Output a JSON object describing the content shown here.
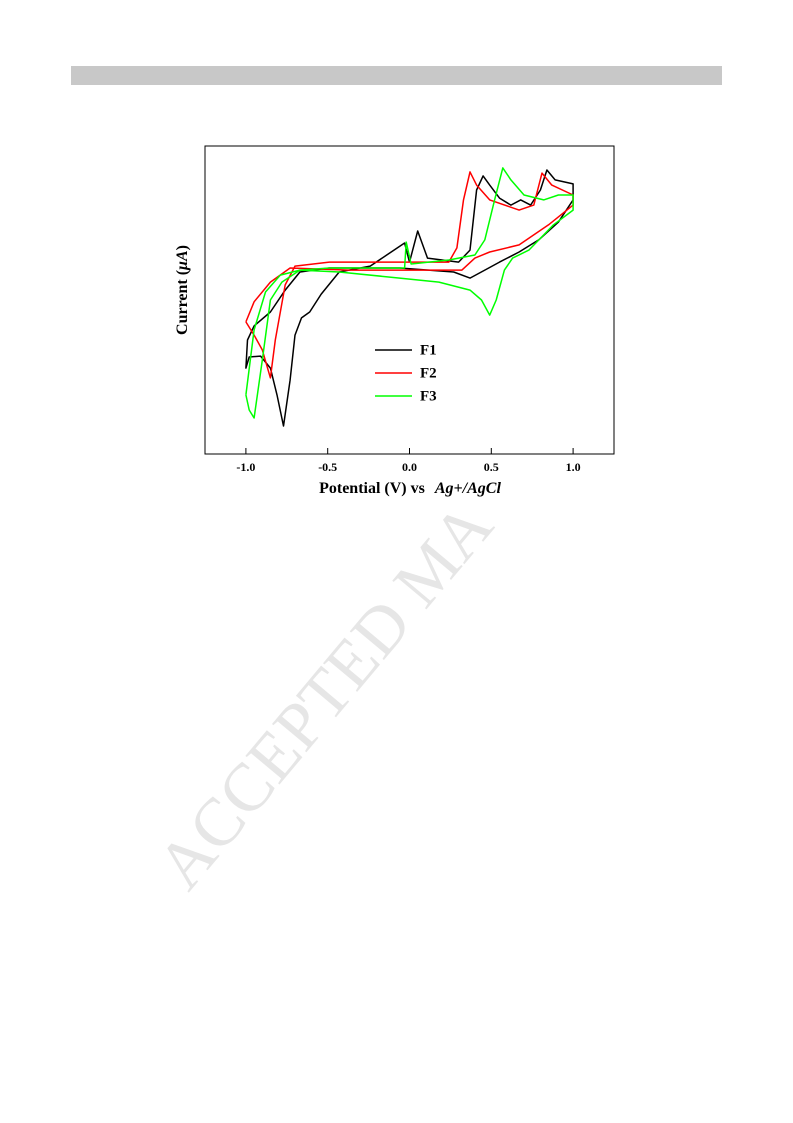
{
  "watermark": "ACCEPTED MA",
  "chart_data": {
    "type": "line",
    "xlabel": [
      "Potential (V) vs",
      "Ag+/AgCl"
    ],
    "ylabel": [
      "Current (",
      "μA",
      ")"
    ],
    "xlim": [
      -1.25,
      1.25
    ],
    "ylim": [
      0,
      100
    ],
    "xticks": [
      {
        "value": -1,
        "label": "-1.0"
      },
      -0.5,
      {
        "value": 0,
        "label": "0.0"
      },
      0.5,
      {
        "value": 1,
        "label": "1.0"
      }
    ],
    "legend": "lower center",
    "series": [
      {
        "name": "F1",
        "color": "#000000",
        "x": [
          0.0,
          0.05,
          0.11,
          0.3,
          0.37,
          0.41,
          0.45,
          0.49,
          0.55,
          0.62,
          0.68,
          0.74,
          0.8,
          0.84,
          0.89,
          1.0,
          1.0,
          0.91,
          0.79,
          0.67,
          0.55,
          0.46,
          0.37,
          0.27,
          -0.06,
          -0.49,
          -0.67,
          -0.76,
          -0.85,
          -0.95,
          -0.99,
          -1.0,
          -0.98,
          -0.91,
          -0.85,
          -0.81,
          -0.77,
          -0.73,
          -0.7,
          -0.66,
          -0.61,
          -0.54,
          -0.43,
          -0.24,
          -0.03,
          0.0
        ],
        "values": [
          62.3,
          72.4,
          63.6,
          62.3,
          66.2,
          85.7,
          90.3,
          87.3,
          83.1,
          80.8,
          82.5,
          80.8,
          85.7,
          92.2,
          89.0,
          87.7,
          82.5,
          75.3,
          69.5,
          65.6,
          62.3,
          59.7,
          57.1,
          59.1,
          60.4,
          60.4,
          59.1,
          53.2,
          46.1,
          41.6,
          37.0,
          27.9,
          31.5,
          31.8,
          27.9,
          19.2,
          9.1,
          24.0,
          38.6,
          44.2,
          46.1,
          51.9,
          59.1,
          61.0,
          68.5,
          62.3
        ]
      },
      {
        "name": "F2",
        "color": "#ff0000",
        "x": [
          -1.0,
          -0.95,
          -0.9,
          -0.85,
          -0.82,
          -0.76,
          -0.7,
          -0.49,
          0.24,
          0.29,
          0.33,
          0.37,
          0.41,
          0.49,
          0.67,
          0.76,
          0.81,
          0.87,
          1.0,
          1.0,
          0.85,
          0.67,
          0.49,
          0.4,
          0.32,
          0.06,
          -0.37,
          -0.73,
          -0.85,
          -0.95,
          -1.0
        ],
        "values": [
          42.9,
          38.6,
          33.8,
          24.7,
          37.0,
          54.9,
          61.0,
          62.3,
          62.3,
          66.9,
          82.5,
          91.6,
          87.3,
          82.5,
          79.2,
          80.8,
          91.2,
          87.3,
          84.1,
          80.8,
          74.4,
          67.9,
          65.6,
          63.6,
          59.7,
          59.7,
          59.7,
          60.4,
          55.8,
          49.4,
          42.9
        ]
      },
      {
        "name": "F3",
        "color": "#00ff00",
        "x": [
          -1.0,
          -0.98,
          -0.95,
          -0.9,
          -0.85,
          -0.78,
          -0.67,
          -0.49,
          -0.03,
          -0.02,
          0.01,
          0.24,
          0.4,
          0.46,
          0.52,
          0.57,
          0.62,
          0.7,
          0.82,
          0.91,
          1.0,
          1.0,
          0.88,
          0.73,
          0.63,
          0.58,
          0.53,
          0.49,
          0.44,
          0.37,
          0.18,
          -0.06,
          -0.43,
          -0.67,
          -0.79,
          -0.88,
          -0.95,
          -1.0
        ],
        "values": [
          19.2,
          14.3,
          11.7,
          30.5,
          50.0,
          55.8,
          59.7,
          60.4,
          60.4,
          68.8,
          61.7,
          63.0,
          64.6,
          69.5,
          82.5,
          92.9,
          89.0,
          84.1,
          82.5,
          84.1,
          84.1,
          79.2,
          74.4,
          66.2,
          63.6,
          59.7,
          50.0,
          45.1,
          50.0,
          53.2,
          55.8,
          57.1,
          59.1,
          59.7,
          58.1,
          52.6,
          40.3,
          19.2
        ]
      }
    ]
  }
}
